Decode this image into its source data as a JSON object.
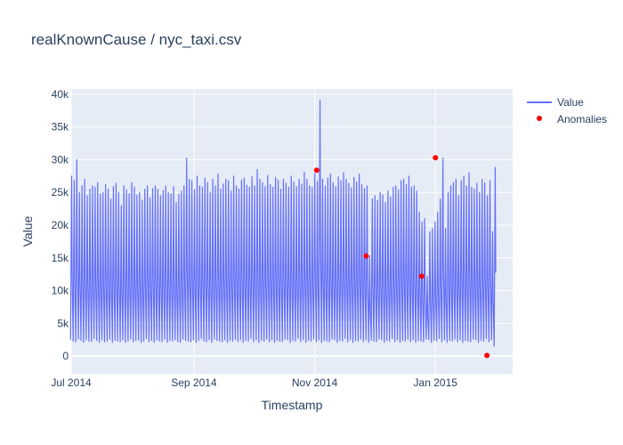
{
  "chart_data": {
    "type": "line",
    "title": "realKnownCause / nyc_taxi.csv",
    "xlabel": "Timestamp",
    "ylabel": "Value",
    "x_tick_labels": [
      "Jul 2014",
      "Sep 2014",
      "Nov 2014",
      "Jan 2015"
    ],
    "x_tick_dates": [
      "2014-07-01",
      "2014-09-01",
      "2014-11-01",
      "2015-01-01"
    ],
    "x_range": [
      "2014-07-01",
      "2015-02-09"
    ],
    "y_tick_labels": [
      "0",
      "5k",
      "10k",
      "15k",
      "20k",
      "25k",
      "30k",
      "35k",
      "40k"
    ],
    "y_tick_values": [
      0,
      5000,
      10000,
      15000,
      20000,
      25000,
      30000,
      35000,
      40000
    ],
    "ylim": [
      -2700,
      40800
    ],
    "grid": true,
    "legend_placement": "top-right",
    "colors": {
      "value_line": "#636efa",
      "anomalies": "#ff0000",
      "plot_bg": "#e5ecf6",
      "grid": "#ffffff",
      "text": "#2a3f5f"
    },
    "series": [
      {
        "name": "Value",
        "kind": "line",
        "x_start": "2014-07-01",
        "x_end": "2015-01-31",
        "typical_range": [
          2000,
          27000
        ],
        "daily_peak_samples": [
          27500,
          26800,
          30000,
          25000,
          26000,
          27000,
          24500,
          25500,
          26000,
          25800,
          26500,
          24800,
          25000,
          26200,
          25500,
          24000,
          25900,
          26400,
          25000,
          23000,
          26000,
          25400,
          24800,
          26500,
          25800,
          24600,
          25000,
          23800,
          25500,
          26000,
          24200,
          25600,
          26000,
          25500,
          24500,
          25300,
          26000,
          25000,
          24800,
          25900,
          23500,
          24700,
          25200,
          26000,
          30200,
          27000,
          26800,
          25400,
          27500,
          26000,
          25800,
          27200,
          26500,
          25000,
          27000,
          26000,
          27800,
          25500,
          26300,
          27000,
          26800,
          25200,
          27500,
          26000,
          25500,
          26900,
          27200,
          26100,
          25800,
          27400,
          26000,
          28500,
          27000,
          26500,
          25900,
          27600,
          26200,
          25800,
          27300,
          26900,
          25500,
          27000,
          26400,
          25800,
          27500,
          26600,
          25900,
          27000,
          26300,
          28100,
          27000,
          26000,
          25800,
          27900,
          26700,
          39100,
          27000,
          26000,
          27200,
          27800,
          26500,
          25900,
          27400,
          26800,
          28000,
          27000,
          26400,
          25700,
          27300,
          26600,
          27800,
          26200,
          25600,
          26000,
          15300,
          24000,
          24500,
          23800,
          25000,
          24600,
          23500,
          25200,
          24300,
          25800,
          26000,
          25400,
          26800,
          27000,
          26200,
          27500,
          25800,
          26000,
          25200,
          22000,
          20500,
          21000,
          12200,
          19000,
          19500,
          20500,
          22000,
          24000,
          30200,
          19500,
          25000,
          26000,
          26500,
          27000,
          24500,
          26800,
          27500,
          26000,
          28000,
          25800,
          25500,
          26400,
          25000,
          27000,
          26500,
          24500,
          26800,
          19000,
          28800
        ],
        "daily_trough_samples": [
          2500,
          2300,
          2200,
          2600,
          2400,
          2100,
          2500,
          2300,
          2200,
          2700,
          2400,
          2100,
          2500,
          2200,
          2300,
          2600,
          2100,
          2400,
          2300,
          2200,
          2500,
          2100,
          2300,
          2600,
          2200,
          2400,
          2500,
          2100,
          2300,
          2700,
          2200,
          2400,
          2100,
          2500,
          2300,
          2200,
          2600,
          2100,
          2400,
          2300,
          2500,
          2200,
          2100,
          2600,
          2400,
          2300,
          2200,
          2500,
          2100,
          2400,
          2700,
          2300,
          2200,
          2500,
          2100,
          2600,
          2400,
          2300,
          2200,
          2500,
          2100,
          2400,
          2300,
          2600,
          2200,
          2500,
          2100,
          2400,
          2300,
          2700,
          2200,
          2500,
          2100,
          2400,
          2300,
          2600,
          2200,
          2500,
          2100,
          2400,
          2300,
          2200,
          2600,
          2500,
          2100,
          2400,
          2300,
          2700,
          2200,
          2500,
          2100,
          2400,
          2300,
          2600,
          2200,
          2500,
          2100,
          2400,
          2300,
          2200,
          2600,
          2500,
          2100,
          2400,
          2300,
          2700,
          2200,
          2500,
          2100,
          2400,
          2300,
          2600,
          2200,
          2500,
          2100,
          2400,
          2300,
          2200,
          2600,
          2500,
          2100,
          2400,
          2300,
          2700,
          2200,
          2500,
          2100,
          2400,
          2300,
          2600,
          2200,
          2500,
          2100,
          2400,
          2300,
          2200,
          2600,
          2500,
          2100,
          2400,
          2300,
          2700,
          2200,
          2500,
          2100,
          2400,
          2300,
          2600,
          2200,
          2500,
          2100,
          2400,
          2300,
          2200,
          2600,
          2500,
          2100,
          2400,
          2300,
          2700,
          2200,
          2500,
          1500,
          2000,
          2500
        ]
      },
      {
        "name": "Anomalies",
        "kind": "markers",
        "points": [
          {
            "x": "2014-11-02",
            "y": 28400
          },
          {
            "x": "2014-11-27",
            "y": 15300
          },
          {
            "x": "2014-12-25",
            "y": 12200
          },
          {
            "x": "2015-01-01",
            "y": 30300
          },
          {
            "x": "2015-01-27",
            "y": 100
          }
        ]
      }
    ]
  }
}
